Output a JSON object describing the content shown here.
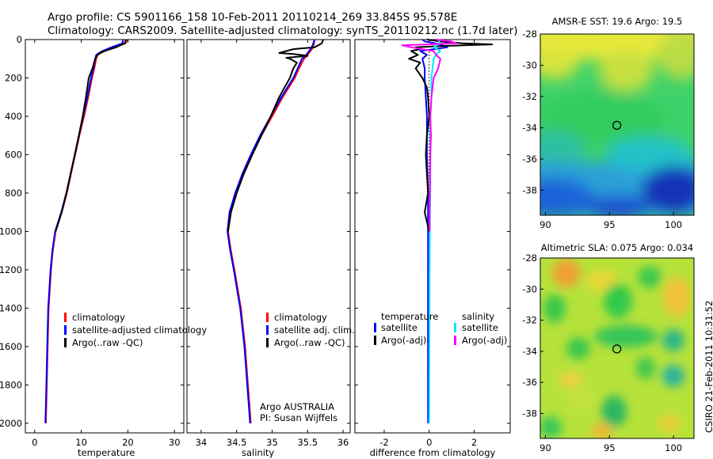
{
  "header": {
    "line1": "Argo profile: CS 5901166_158 10-Feb-2011 20110214_269 33.845S 95.578E",
    "line2": "Climatology: CARS2009. Satellite-adjusted climatology: synTS_20110212.nc (1.7d later)"
  },
  "footer_stamp": "CSIRO 21-Feb-2011 10:31:52",
  "colors": {
    "climatology": "#ff0000",
    "satellite": "#0000ff",
    "argo": "#000000",
    "salinity_satellite": "#00e5ff",
    "salinity_argo": "#ff00ff"
  },
  "chart_data": [
    {
      "type": "line",
      "id": "temperature",
      "xlabel": "temperature",
      "xlim": [
        -2,
        32
      ],
      "xticks": [
        0,
        10,
        20,
        30
      ],
      "ylim": [
        2050,
        0
      ],
      "yticks": [
        0,
        200,
        400,
        600,
        800,
        1000,
        1200,
        1400,
        1600,
        1800,
        2000
      ],
      "legend": [
        "climatology",
        "satellite-adjusted climatology",
        "Argo(..raw -QC)"
      ],
      "legend_position": "lower-right",
      "series": [
        {
          "name": "climatology",
          "color_key": "climatology",
          "y": [
            0,
            20,
            40,
            60,
            80,
            100,
            150,
            200,
            300,
            400,
            500,
            600,
            700,
            800,
            900,
            1000,
            1100,
            1200,
            1400,
            1600,
            1800,
            2000
          ],
          "x": [
            19.8,
            19.5,
            17,
            15,
            13.5,
            13.2,
            12.8,
            12.3,
            11.5,
            10.6,
            9.6,
            8.7,
            7.8,
            6.9,
            5.8,
            4.5,
            3.9,
            3.5,
            3.0,
            2.8,
            2.6,
            2.4
          ]
        },
        {
          "name": "satellite",
          "color_key": "satellite",
          "y": [
            0,
            20,
            40,
            60,
            80,
            100,
            150,
            200,
            300,
            400,
            500,
            600,
            700,
            800,
            900,
            1000,
            1100,
            1200,
            1400,
            1600,
            1800,
            2000
          ],
          "x": [
            19.0,
            18.8,
            16.5,
            14.5,
            13.2,
            13.0,
            12.6,
            12.1,
            11.3,
            10.4,
            9.5,
            8.6,
            7.7,
            6.8,
            5.7,
            4.4,
            3.8,
            3.4,
            2.9,
            2.7,
            2.5,
            2.3
          ]
        },
        {
          "name": "argo",
          "color_key": "argo",
          "y": [
            0,
            20,
            40,
            60,
            70,
            80,
            100,
            150,
            200,
            300,
            400,
            500,
            600,
            700,
            800,
            900,
            1000
          ],
          "x": [
            19.6,
            19.3,
            17.5,
            15,
            14,
            13.5,
            13.0,
            12.4,
            11.6,
            11.0,
            10.3,
            9.5,
            8.6,
            7.7,
            6.8,
            5.8,
            4.5
          ]
        }
      ]
    },
    {
      "type": "line",
      "id": "salinity",
      "xlabel": "salinity",
      "xlim": [
        33.8,
        36.1
      ],
      "xticks": [
        34,
        34.5,
        35,
        35.5,
        36
      ],
      "ylim": [
        2050,
        0
      ],
      "legend": [
        "climatology",
        "satellite adj. clim.",
        "Argo(..raw -QC)"
      ],
      "legend_position": "lower-right",
      "annotation": [
        "Argo AUSTRALIA",
        "PI: Susan Wijffels"
      ],
      "series": [
        {
          "name": "climatology",
          "color_key": "climatology",
          "y": [
            0,
            40,
            80,
            100,
            150,
            200,
            300,
            400,
            500,
            600,
            700,
            800,
            900,
            1000,
            1100,
            1200,
            1400,
            1600,
            1800,
            2000
          ],
          "x": [
            35.6,
            35.58,
            35.5,
            35.45,
            35.38,
            35.32,
            35.15,
            35.0,
            34.85,
            34.72,
            34.6,
            34.5,
            34.42,
            34.38,
            34.42,
            34.47,
            34.56,
            34.62,
            34.66,
            34.7
          ]
        },
        {
          "name": "satellite",
          "color_key": "satellite",
          "y": [
            0,
            40,
            80,
            100,
            150,
            200,
            300,
            400,
            500,
            600,
            700,
            800,
            900,
            1000,
            1100,
            1200,
            1400,
            1600,
            1800,
            2000
          ],
          "x": [
            35.6,
            35.56,
            35.48,
            35.42,
            35.36,
            35.3,
            35.13,
            34.98,
            34.83,
            34.7,
            34.58,
            34.48,
            34.4,
            34.37,
            34.41,
            34.46,
            34.55,
            34.61,
            34.65,
            34.69
          ]
        },
        {
          "name": "argo",
          "color_key": "argo",
          "y": [
            0,
            20,
            40,
            50,
            60,
            70,
            75,
            85,
            95,
            100,
            120,
            150,
            200,
            300,
            400,
            500,
            600,
            700,
            800,
            900,
            1000
          ],
          "x": [
            35.72,
            35.7,
            35.6,
            35.3,
            35.2,
            35.1,
            35.3,
            35.5,
            35.2,
            35.25,
            35.35,
            35.3,
            35.25,
            35.1,
            34.98,
            34.85,
            34.72,
            34.6,
            34.5,
            34.42,
            34.38
          ]
        }
      ]
    },
    {
      "type": "line",
      "id": "difference",
      "xlabel": "difference from climatology",
      "xlim": [
        -3.3,
        3.6
      ],
      "xticks": [
        -2,
        0,
        2
      ],
      "ylim": [
        2050,
        0
      ],
      "legend_groups": [
        {
          "title": "temperature",
          "items": [
            "satellite",
            "Argo(-adj)"
          ]
        },
        {
          "title": "salinity",
          "items": [
            "satellite",
            "Argo(-adj)"
          ]
        }
      ],
      "legend_position": "lower-right",
      "series": [
        {
          "name": "temperature satellite",
          "color_key": "satellite",
          "y": [
            0,
            10,
            20,
            30,
            40,
            60,
            80,
            100,
            150,
            200,
            300,
            400,
            600,
            800,
            1000,
            1200,
            1600,
            2000
          ],
          "x": [
            -0.3,
            -0.2,
            0.3,
            0.6,
            0.8,
            -0.4,
            -0.1,
            -0.3,
            -0.2,
            -0.2,
            -0.15,
            -0.1,
            -0.1,
            -0.05,
            -0.05,
            -0.05,
            -0.05,
            -0.05
          ]
        },
        {
          "name": "temperature Argo(-adj)",
          "color_key": "argo",
          "y": [
            0,
            10,
            20,
            25,
            30,
            35,
            40,
            50,
            60,
            80,
            100,
            120,
            150,
            200,
            250,
            300,
            400,
            500,
            600,
            700,
            800,
            900,
            950,
            1000
          ],
          "x": [
            -0.1,
            0.5,
            1.5,
            2.8,
            1.5,
            0.3,
            -0.6,
            -0.4,
            -0.8,
            -0.5,
            -0.9,
            -0.4,
            -0.6,
            -0.3,
            -0.1,
            -0.05,
            0,
            -0.1,
            -0.15,
            -0.1,
            -0.05,
            -0.2,
            -0.1,
            0
          ]
        },
        {
          "name": "salinity satellite",
          "color_key": "salinity_satellite",
          "y": [
            0,
            20,
            40,
            60,
            80,
            100,
            150,
            200,
            300,
            400,
            500,
            600,
            700,
            800,
            1000,
            1200,
            1600,
            2000
          ],
          "x": [
            0.4,
            0.5,
            0.2,
            0.5,
            0.3,
            0.2,
            0.15,
            0.1,
            0.1,
            0.05,
            0.05,
            0.05,
            0.05,
            0.05,
            0.03,
            0.02,
            0.01,
            0
          ]
        },
        {
          "name": "salinity Argo(-adj)",
          "color_key": "salinity_argo",
          "y": [
            0,
            10,
            20,
            30,
            40,
            50,
            60,
            80,
            100,
            150,
            200,
            300,
            400,
            500,
            600,
            700,
            800,
            900,
            1000
          ],
          "x": [
            0.3,
            1.0,
            1.2,
            -1.2,
            -0.8,
            -0.3,
            0.2,
            0.3,
            0.5,
            0.4,
            0.2,
            0.1,
            0.05,
            0.08,
            0.05,
            0.04,
            0.03,
            0.02,
            0.02
          ]
        }
      ]
    },
    {
      "type": "heatmap",
      "id": "sst_map",
      "title": "AMSR-E SST: 19.6 Argo: 19.5",
      "xlim": [
        89.6,
        101.6
      ],
      "ylim": [
        -39.6,
        -28
      ],
      "xticks": [
        90,
        95,
        100
      ],
      "yticks": [
        -28,
        -30,
        -32,
        -34,
        -36,
        -38
      ],
      "marker": {
        "lon": 95.578,
        "lat": -33.845
      }
    },
    {
      "type": "heatmap",
      "id": "sla_map",
      "title": "Altimetric SLA: 0.075 Argo: 0.034",
      "xlim": [
        89.6,
        101.6
      ],
      "ylim": [
        -39.6,
        -28
      ],
      "xticks": [
        90,
        95,
        100
      ],
      "yticks": [
        -28,
        -30,
        -32,
        -34,
        -36,
        -38
      ],
      "marker": {
        "lon": 95.578,
        "lat": -33.845
      }
    }
  ]
}
